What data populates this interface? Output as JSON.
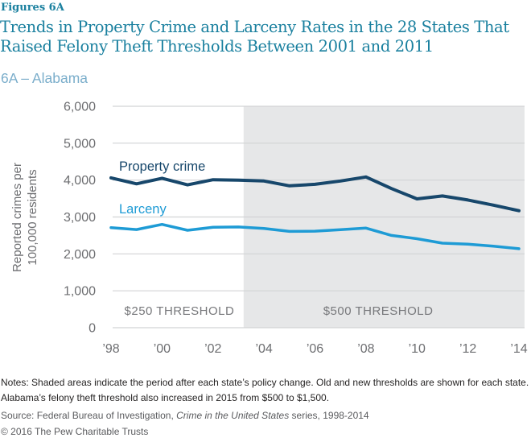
{
  "header": {
    "figure_label": "Figures 6A",
    "title_lines": [
      "Trends in Property Crime and Larceny Rates in the 28 States That",
      "Raised Felony Theft Thresholds Between 2001 and 2011"
    ],
    "subtitle": "6A – Alabama"
  },
  "chart_data": {
    "type": "line",
    "x": [
      1998,
      1999,
      2000,
      2001,
      2002,
      2003,
      2004,
      2005,
      2006,
      2007,
      2008,
      2009,
      2010,
      2011,
      2012,
      2013,
      2014
    ],
    "series": [
      {
        "name": "Property crime",
        "color": "#17476B",
        "values": [
          4060,
          3900,
          4050,
          3870,
          4010,
          4000,
          3975,
          3845,
          3885,
          3975,
          4085,
          3770,
          3490,
          3570,
          3460,
          3320,
          3170
        ]
      },
      {
        "name": "Larceny",
        "color": "#1E9BD5",
        "values": [
          2710,
          2660,
          2800,
          2640,
          2720,
          2730,
          2690,
          2610,
          2615,
          2655,
          2700,
          2500,
          2410,
          2290,
          2265,
          2210,
          2140
        ]
      }
    ],
    "ylabel_lines": [
      "Reported crimes per",
      "100,000 residents"
    ],
    "ylim": [
      0,
      6000
    ],
    "yticks": [
      0,
      1000,
      2000,
      3000,
      4000,
      5000,
      6000
    ],
    "ytick_labels": [
      "0",
      "1,000",
      "2,000",
      "3,000",
      "4,000",
      "5,000",
      "6,000"
    ],
    "xticks": [
      1998,
      2000,
      2002,
      2004,
      2006,
      2008,
      2010,
      2012,
      2014
    ],
    "xtick_labels": [
      "’98",
      "’00",
      "’02",
      "’04",
      "’06",
      "’08",
      "’10",
      "’12",
      "’14"
    ],
    "grid": true,
    "legend_position": "inline-labels",
    "shaded_region": {
      "start_year": 2003.2,
      "end_year": 2014.22,
      "color": "#E6E7E8"
    },
    "annotations": [
      {
        "text": "$250 THRESHOLD",
        "x_year": 2000.68,
        "y_value": 350
      },
      {
        "text": "$500 THRESHOLD",
        "x_year": 2008.48,
        "y_value": 350
      }
    ],
    "colors": {
      "grid": "#D2D3D5",
      "tick_text": "#6D6E71",
      "annotation_text": "#77787B",
      "axis_title_text": "#6D6E71"
    }
  },
  "footer": {
    "notes": "Notes: Shaded areas indicate the period after each state’s policy change. Old and new thresholds are shown for each state. Alabama’s felony theft threshold also increased in 2015 from $500 to $1,500.",
    "source_prefix": "Source: Federal Bureau of Investigation, ",
    "source_italic": "Crime in the United States",
    "source_suffix": " series, 1998-2014",
    "copyright": "© 2016 The Pew Charitable Trusts"
  }
}
